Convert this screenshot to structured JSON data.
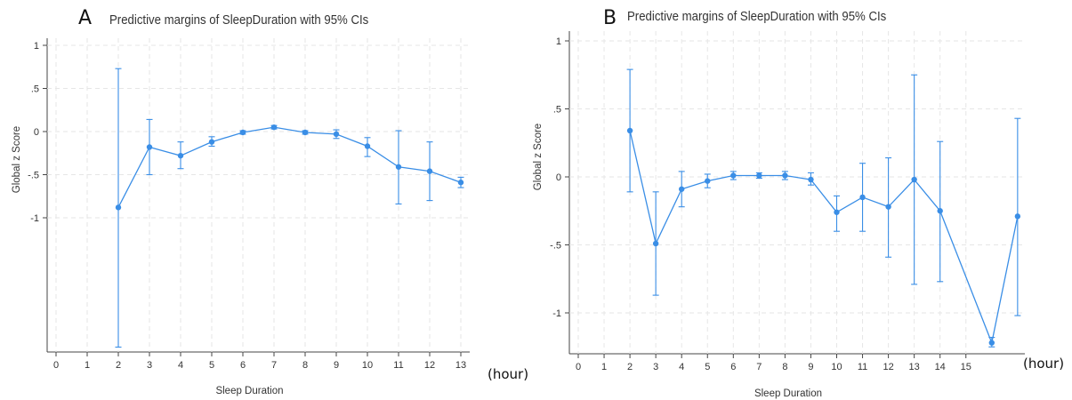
{
  "chart_data": [
    {
      "type": "line",
      "panel_label": "A",
      "title": "Predictive margins of SleepDuration with 95% CIs",
      "xlabel": "Sleep Duration",
      "ylabel": "Global z Score",
      "unit_label": "(hour)",
      "xlim": [
        0,
        13
      ],
      "ylim": [
        -2.5,
        1
      ],
      "x_ticks": [
        0,
        1,
        2,
        3,
        4,
        5,
        6,
        7,
        8,
        9,
        10,
        11,
        12,
        13
      ],
      "y_ticks": [
        1,
        0.5,
        0,
        -0.5,
        -1
      ],
      "y_tick_labels": [
        "1",
        ".5",
        "0",
        "-.5",
        "-1"
      ],
      "grid": true,
      "color": "#3a8ee6",
      "series": [
        {
          "x": [
            2,
            3,
            4,
            5,
            6,
            7,
            8,
            9,
            10,
            11,
            12,
            13
          ],
          "y": [
            -0.88,
            -0.18,
            -0.28,
            -0.12,
            -0.01,
            0.05,
            -0.01,
            -0.03,
            -0.17,
            -0.41,
            -0.46,
            -0.59
          ],
          "lower": [
            -2.5,
            -0.5,
            -0.43,
            -0.17,
            -0.03,
            0.03,
            -0.03,
            -0.08,
            -0.29,
            -0.84,
            -0.8,
            -0.65
          ],
          "upper": [
            0.73,
            0.14,
            -0.12,
            -0.06,
            0.01,
            0.07,
            0.01,
            0.02,
            -0.07,
            0.01,
            -0.12,
            -0.53
          ]
        }
      ]
    },
    {
      "type": "line",
      "panel_label": "B",
      "title": "Predictive margins of SleepDuration with 95% CIs",
      "xlabel": "Sleep Duration",
      "ylabel": "Global z Score",
      "unit_label": "(hour)",
      "xlim": [
        0,
        17
      ],
      "ylim": [
        -1.3,
        1.05
      ],
      "x_ticks": [
        0,
        1,
        2,
        3,
        4,
        5,
        6,
        7,
        8,
        9,
        10,
        11,
        12,
        13,
        14,
        15
      ],
      "y_ticks": [
        1,
        0.5,
        0,
        -0.5,
        -1
      ],
      "y_tick_labels": [
        "1",
        ".5",
        "0",
        "-.5",
        "-1"
      ],
      "grid": true,
      "color": "#3a8ee6",
      "series": [
        {
          "x": [
            2,
            3,
            4,
            5,
            6,
            7,
            8,
            9,
            10,
            11,
            12,
            13,
            14,
            16,
            17
          ],
          "y": [
            0.34,
            -0.49,
            -0.09,
            -0.03,
            0.01,
            0.01,
            0.01,
            -0.02,
            -0.26,
            -0.15,
            -0.22,
            -0.02,
            -0.25,
            -1.22,
            -0.29
          ],
          "lower": [
            -0.11,
            -0.87,
            -0.22,
            -0.08,
            -0.02,
            -0.01,
            -0.02,
            -0.06,
            -0.4,
            -0.4,
            -0.59,
            -0.79,
            -0.77,
            -1.25,
            -1.02
          ],
          "upper": [
            0.79,
            -0.11,
            0.04,
            0.02,
            0.04,
            0.03,
            0.04,
            0.03,
            -0.14,
            0.1,
            0.14,
            0.75,
            0.26,
            -1.18,
            0.43
          ]
        }
      ]
    }
  ]
}
